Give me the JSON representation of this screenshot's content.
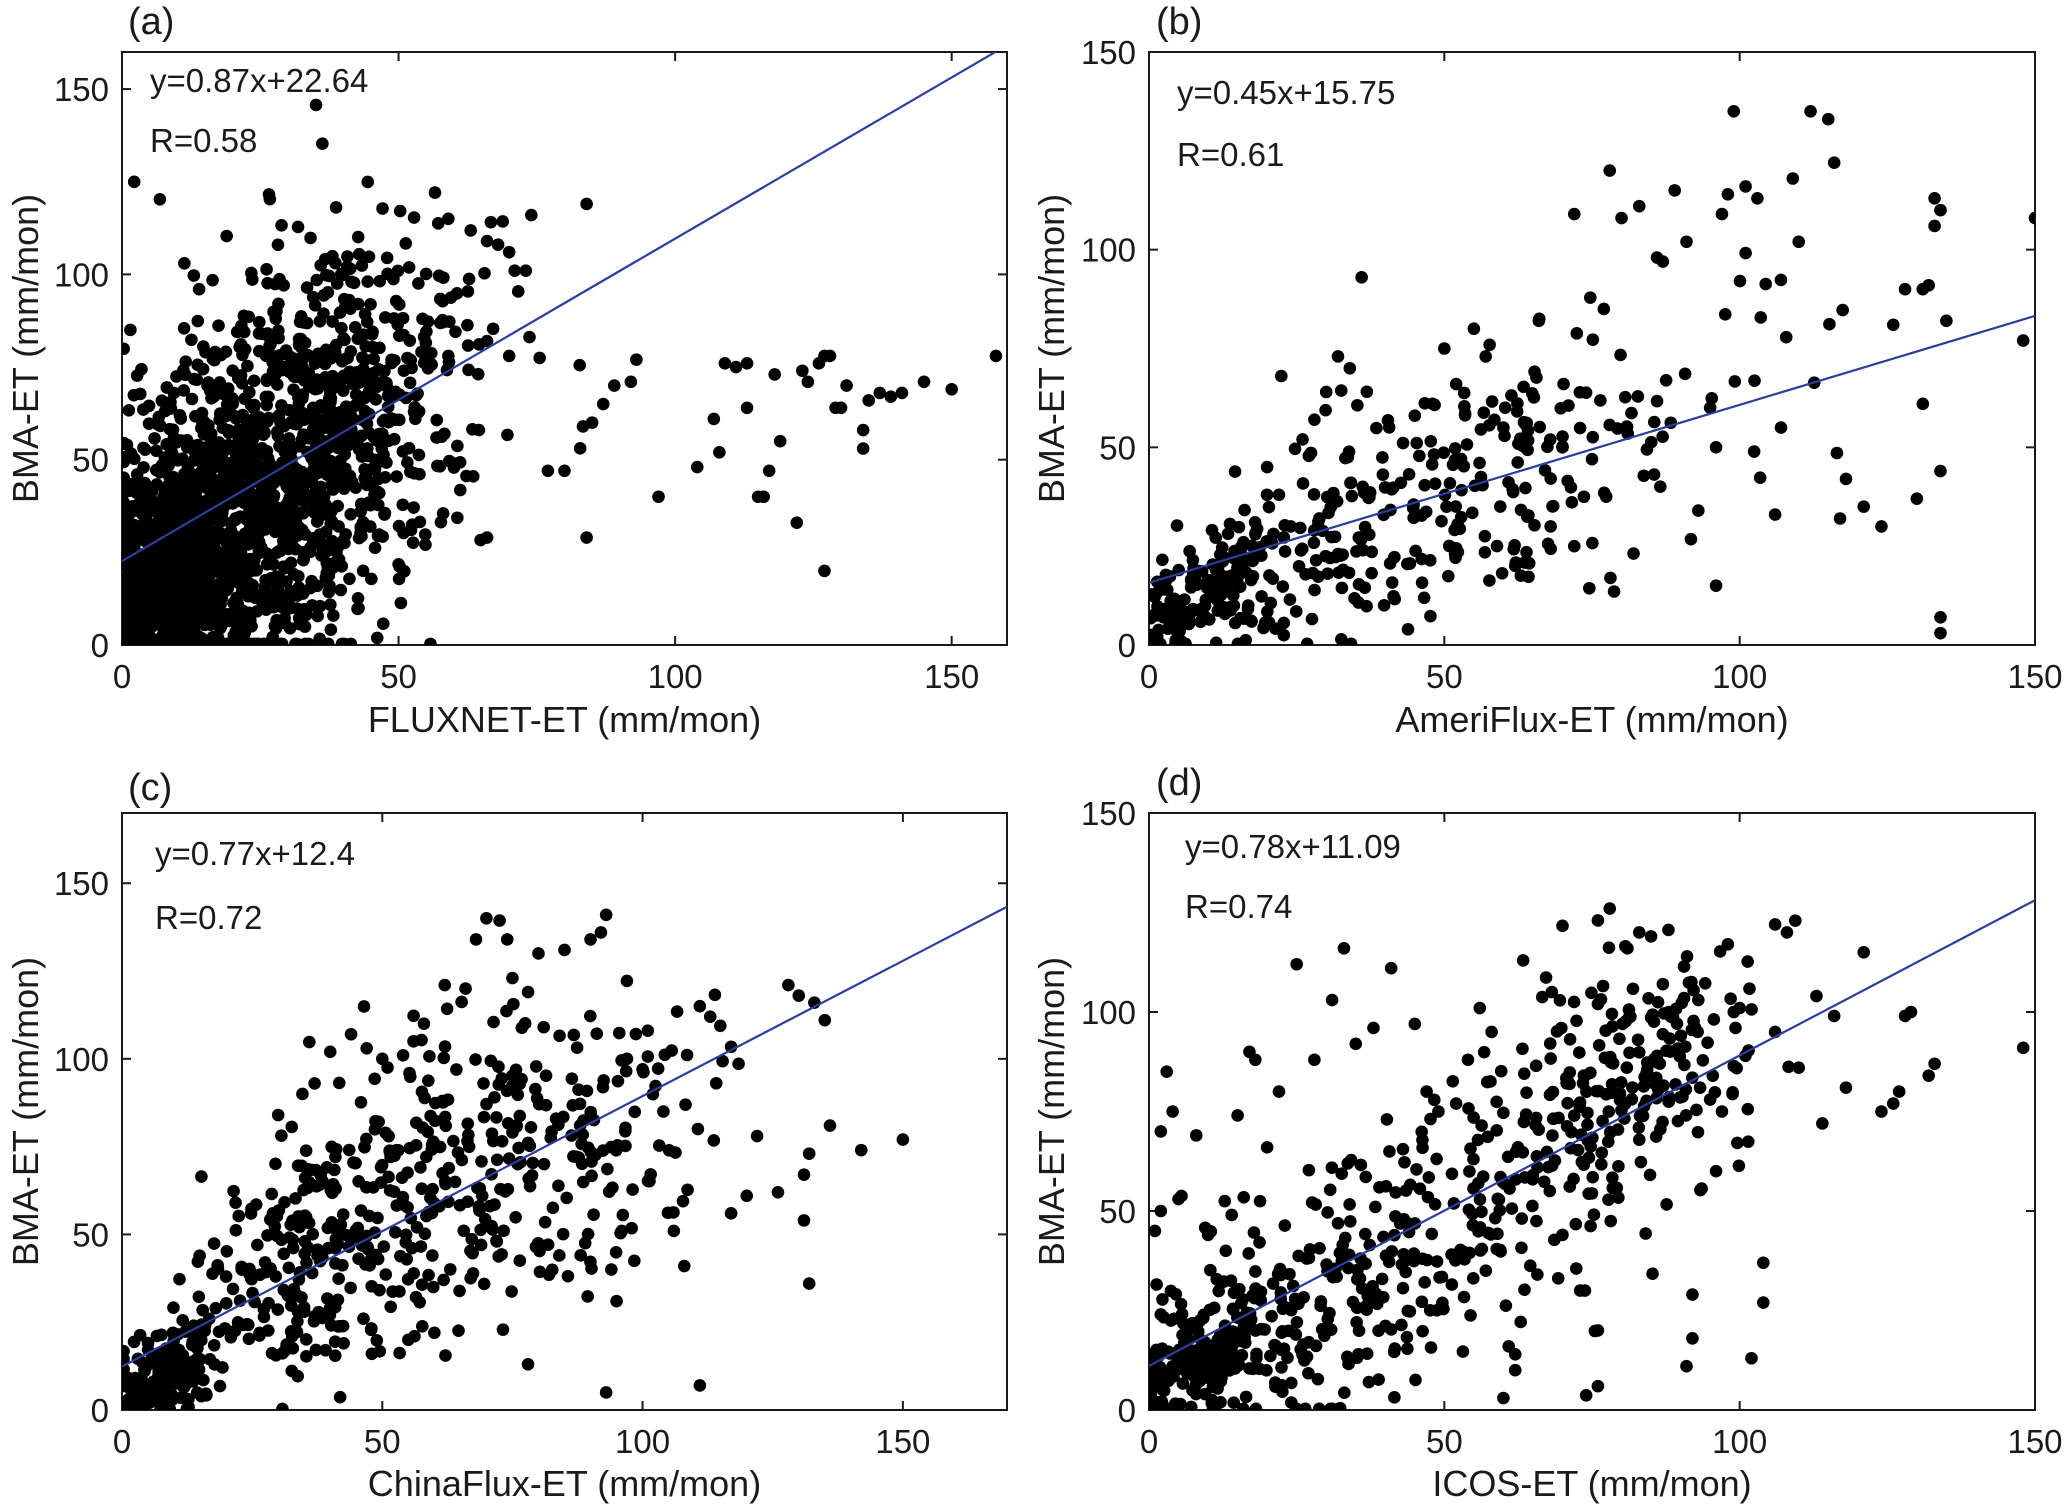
{
  "chart_data": [
    {
      "type": "scatter",
      "panel_label": "(a)",
      "xlabel": "FLUXNET-ET (mm/mon)",
      "ylabel": "BMA-ET (mm/mon)",
      "xlim": [
        0,
        160
      ],
      "ylim": [
        0,
        160
      ],
      "xticks": [
        0,
        50,
        100,
        150
      ],
      "yticks": [
        0,
        50,
        100,
        150
      ],
      "equation": "y=0.87x+22.64",
      "r_text": "R=0.58",
      "fit": {
        "slope": 0.87,
        "intercept": 22.64
      },
      "points": [
        [
          158,
          78
        ],
        [
          150,
          69
        ],
        [
          145,
          71
        ],
        [
          141,
          68
        ],
        [
          139,
          67
        ],
        [
          137,
          68
        ],
        [
          135,
          66
        ],
        [
          134,
          58
        ],
        [
          134,
          53
        ],
        [
          131,
          70
        ],
        [
          130,
          64
        ],
        [
          129,
          64
        ],
        [
          128,
          78
        ],
        [
          127,
          78
        ],
        [
          126,
          76
        ],
        [
          127,
          20
        ],
        [
          124,
          71
        ],
        [
          123,
          74
        ],
        [
          122,
          33
        ],
        [
          119,
          55
        ],
        [
          118,
          73
        ],
        [
          117,
          47
        ],
        [
          116,
          40
        ],
        [
          115,
          40
        ],
        [
          113,
          76
        ],
        [
          113,
          64
        ],
        [
          111,
          75
        ],
        [
          109,
          76
        ],
        [
          108,
          52
        ],
        [
          107,
          61
        ],
        [
          104,
          48
        ],
        [
          97,
          40
        ],
        [
          93,
          77
        ],
        [
          92,
          71
        ],
        [
          89,
          70
        ],
        [
          87,
          65
        ],
        [
          85,
          60
        ],
        [
          84,
          29
        ],
        [
          84,
          119
        ],
        [
          80,
          47
        ],
        [
          77,
          47
        ],
        [
          74,
          116
        ],
        [
          73,
          101
        ],
        [
          71,
          101
        ],
        [
          70,
          106
        ],
        [
          70,
          78
        ],
        [
          68,
          108
        ],
        [
          66,
          109
        ],
        [
          66,
          82
        ],
        [
          66,
          29
        ],
        [
          59,
          115
        ],
        [
          59,
          78
        ],
        [
          60,
          49
        ]
      ],
      "clusters": [
        {
          "cx": 16,
          "cy": 28,
          "sx": 12,
          "sy": 20,
          "n": 900,
          "seed": 11
        },
        {
          "cx": 30,
          "cy": 55,
          "sx": 14,
          "sy": 28,
          "n": 650,
          "seed": 12
        },
        {
          "cx": 8,
          "cy": 15,
          "sx": 6,
          "sy": 12,
          "n": 500,
          "seed": 13
        },
        {
          "cx": 45,
          "cy": 60,
          "sx": 12,
          "sy": 25,
          "n": 180,
          "seed": 14
        }
      ]
    },
    {
      "type": "scatter",
      "panel_label": "(b)",
      "xlabel": "AmeriFlux-ET (mm/mon)",
      "ylabel": "BMA-ET (mm/mon)",
      "xlim": [
        0,
        150
      ],
      "ylim": [
        0,
        150
      ],
      "xticks": [
        0,
        50,
        100,
        150
      ],
      "yticks": [
        0,
        50,
        100,
        150
      ],
      "equation": "y=0.45x+15.75",
      "r_text": "R=0.61",
      "fit": {
        "slope": 0.45,
        "intercept": 15.75
      },
      "points": [
        [
          150,
          108
        ],
        [
          148,
          77
        ],
        [
          135,
          82
        ],
        [
          134,
          110
        ],
        [
          133,
          106
        ],
        [
          133,
          113
        ],
        [
          132,
          91
        ],
        [
          131,
          90
        ],
        [
          131,
          61
        ],
        [
          134,
          44
        ],
        [
          134,
          7
        ],
        [
          134,
          3
        ],
        [
          130,
          37
        ],
        [
          128,
          90
        ],
        [
          126,
          81
        ],
        [
          124,
          30
        ],
        [
          121,
          35
        ],
        [
          118,
          42
        ],
        [
          117,
          32
        ],
        [
          116,
          122
        ],
        [
          115,
          133
        ],
        [
          112,
          135
        ],
        [
          110,
          102
        ],
        [
          109,
          118
        ],
        [
          107,
          55
        ],
        [
          106,
          33
        ],
        [
          103,
          113
        ],
        [
          101,
          116
        ],
        [
          99,
          135
        ],
        [
          98,
          114
        ],
        [
          97,
          109
        ],
        [
          96,
          50
        ],
        [
          96,
          15
        ],
        [
          95,
          60
        ],
        [
          93,
          34
        ],
        [
          91,
          102
        ],
        [
          89,
          115
        ],
        [
          87,
          97
        ],
        [
          86,
          98
        ],
        [
          83,
          111
        ],
        [
          80,
          108
        ],
        [
          78,
          120
        ],
        [
          77,
          85
        ],
        [
          75,
          47
        ],
        [
          72,
          109
        ],
        [
          72,
          25
        ],
        [
          70,
          50
        ],
        [
          68,
          30
        ],
        [
          66,
          82
        ],
        [
          62,
          20
        ],
        [
          60,
          55
        ],
        [
          57,
          73
        ],
        [
          55,
          80
        ],
        [
          52,
          66
        ],
        [
          50,
          75
        ],
        [
          48,
          61
        ],
        [
          45,
          58
        ],
        [
          36,
          93
        ],
        [
          34,
          70
        ],
        [
          32,
          73
        ],
        [
          30,
          64
        ],
        [
          28,
          57
        ],
        [
          26,
          52
        ],
        [
          24,
          30
        ],
        [
          22,
          38
        ],
        [
          20,
          45
        ],
        [
          18,
          28
        ],
        [
          16,
          26
        ]
      ],
      "clusters": [
        {
          "cx": 10,
          "cy": 14,
          "sx": 6,
          "sy": 7,
          "n": 160,
          "seed": 21
        },
        {
          "cx": 40,
          "cy": 34,
          "sx": 20,
          "sy": 14,
          "n": 190,
          "seed": 22
        },
        {
          "cx": 70,
          "cy": 48,
          "sx": 18,
          "sy": 18,
          "n": 110,
          "seed": 23
        }
      ]
    },
    {
      "type": "scatter",
      "panel_label": "(c)",
      "xlabel": "ChinaFlux-ET (mm/mon)",
      "ylabel": "BMA-ET (mm/mon)",
      "xlim": [
        0,
        170
      ],
      "ylim": [
        0,
        170
      ],
      "xticks": [
        0,
        50,
        100,
        150
      ],
      "yticks": [
        0,
        50,
        100,
        150
      ],
      "equation": "y=0.77x+12.4",
      "r_text": "R=0.72",
      "fit": {
        "slope": 0.77,
        "intercept": 12.4
      },
      "points": [
        [
          150,
          77
        ],
        [
          142,
          74
        ],
        [
          136,
          81
        ],
        [
          135,
          111
        ],
        [
          133,
          116
        ],
        [
          130,
          118
        ],
        [
          128,
          121
        ],
        [
          132,
          73
        ],
        [
          131,
          67
        ],
        [
          132,
          36
        ],
        [
          131,
          54
        ],
        [
          126,
          62
        ],
        [
          122,
          78
        ],
        [
          120,
          61
        ],
        [
          117,
          56
        ],
        [
          113,
          112
        ],
        [
          111,
          115
        ],
        [
          111,
          7
        ],
        [
          108,
          41
        ],
        [
          106,
          51
        ],
        [
          104,
          85
        ],
        [
          101,
          108
        ],
        [
          100,
          97
        ],
        [
          97,
          100
        ],
        [
          96,
          51
        ],
        [
          95,
          31
        ],
        [
          94,
          40
        ],
        [
          93,
          141
        ],
        [
          93,
          5
        ],
        [
          92,
          136
        ],
        [
          90,
          134
        ],
        [
          88,
          81
        ],
        [
          85,
          131
        ],
        [
          84,
          44
        ],
        [
          81,
          109
        ],
        [
          80,
          130
        ],
        [
          78,
          119
        ],
        [
          75,
          123
        ],
        [
          74,
          134
        ],
        [
          70,
          140
        ],
        [
          68,
          134
        ],
        [
          66,
          120
        ],
        [
          62,
          121
        ],
        [
          58,
          110
        ],
        [
          56,
          105
        ],
        [
          54,
          101
        ],
        [
          50,
          100
        ],
        [
          47,
          103
        ],
        [
          44,
          107
        ],
        [
          40,
          102
        ],
        [
          37,
          93
        ],
        [
          35,
          28
        ],
        [
          30,
          84
        ],
        [
          29,
          56
        ],
        [
          26,
          47
        ],
        [
          23,
          40
        ],
        [
          20,
          38
        ],
        [
          18,
          29
        ],
        [
          55,
          20
        ],
        [
          60,
          22
        ],
        [
          48,
          16
        ],
        [
          72,
          48
        ],
        [
          78,
          13
        ]
      ],
      "clusters": [
        {
          "cx": 8,
          "cy": 10,
          "sx": 5,
          "sy": 6,
          "n": 160,
          "seed": 31
        },
        {
          "cx": 35,
          "cy": 40,
          "sx": 14,
          "sy": 16,
          "n": 200,
          "seed": 32
        },
        {
          "cx": 65,
          "cy": 70,
          "sx": 17,
          "sy": 22,
          "n": 230,
          "seed": 33
        },
        {
          "cx": 90,
          "cy": 70,
          "sx": 15,
          "sy": 20,
          "n": 90,
          "seed": 34
        }
      ]
    },
    {
      "type": "scatter",
      "panel_label": "(d)",
      "xlabel": "ICOS-ET (mm/mon)",
      "ylabel": "BMA-ET (mm/mon)",
      "xlim": [
        0,
        150
      ],
      "ylim": [
        0,
        150
      ],
      "xticks": [
        0,
        50,
        100,
        150
      ],
      "yticks": [
        0,
        50,
        100,
        150
      ],
      "equation": "y=0.78x+11.09",
      "r_text": "R=0.74",
      "fit": {
        "slope": 0.78,
        "intercept": 11.09
      },
      "points": [
        [
          148,
          91
        ],
        [
          133,
          87
        ],
        [
          132,
          84
        ],
        [
          129,
          100
        ],
        [
          128,
          99
        ],
        [
          127,
          80
        ],
        [
          126,
          77
        ],
        [
          124,
          75
        ],
        [
          121,
          115
        ],
        [
          118,
          81
        ],
        [
          116,
          99
        ],
        [
          114,
          72
        ],
        [
          113,
          104
        ],
        [
          110,
          86
        ],
        [
          108,
          120
        ],
        [
          106,
          122
        ],
        [
          106,
          95
        ],
        [
          104,
          27
        ],
        [
          104,
          37
        ],
        [
          102,
          13
        ],
        [
          100,
          101
        ],
        [
          99,
          100
        ],
        [
          98,
          117
        ],
        [
          97,
          75
        ],
        [
          96,
          60
        ],
        [
          95,
          78
        ],
        [
          93,
          103
        ],
        [
          92,
          29
        ],
        [
          92,
          18
        ],
        [
          91,
          11
        ],
        [
          88,
          100
        ],
        [
          87,
          107
        ],
        [
          85,
          119
        ],
        [
          83,
          120
        ],
        [
          81,
          116
        ],
        [
          78,
          126
        ],
        [
          76,
          123
        ],
        [
          76,
          102
        ],
        [
          76,
          20
        ],
        [
          76,
          6
        ],
        [
          73,
          30
        ],
        [
          70,
          44
        ],
        [
          65,
          59
        ],
        [
          62,
          14
        ],
        [
          62,
          10
        ],
        [
          60,
          3
        ],
        [
          58,
          95
        ],
        [
          56,
          101
        ],
        [
          54,
          88
        ],
        [
          52,
          77
        ],
        [
          49,
          75
        ],
        [
          47,
          80
        ],
        [
          45,
          97
        ],
        [
          41,
          111
        ],
        [
          38,
          96
        ],
        [
          35,
          92
        ],
        [
          33,
          116
        ],
        [
          31,
          103
        ],
        [
          28,
          88
        ],
        [
          25,
          112
        ],
        [
          22,
          80
        ],
        [
          20,
          66
        ],
        [
          18,
          88
        ],
        [
          17,
          90
        ],
        [
          15,
          74
        ],
        [
          14,
          49
        ],
        [
          13,
          40
        ],
        [
          10,
          44
        ],
        [
          8,
          69
        ],
        [
          5,
          53
        ],
        [
          4,
          75
        ],
        [
          3,
          85
        ],
        [
          2,
          70
        ],
        [
          2,
          24
        ],
        [
          1,
          45
        ],
        [
          2,
          50
        ]
      ],
      "clusters": [
        {
          "cx": 8,
          "cy": 12,
          "sx": 6,
          "sy": 7,
          "n": 200,
          "seed": 41
        },
        {
          "cx": 35,
          "cy": 30,
          "sx": 16,
          "sy": 15,
          "n": 230,
          "seed": 42
        },
        {
          "cx": 70,
          "cy": 70,
          "sx": 16,
          "sy": 20,
          "n": 220,
          "seed": 43
        },
        {
          "cx": 85,
          "cy": 85,
          "sx": 10,
          "sy": 12,
          "n": 80,
          "seed": 44
        }
      ]
    }
  ]
}
